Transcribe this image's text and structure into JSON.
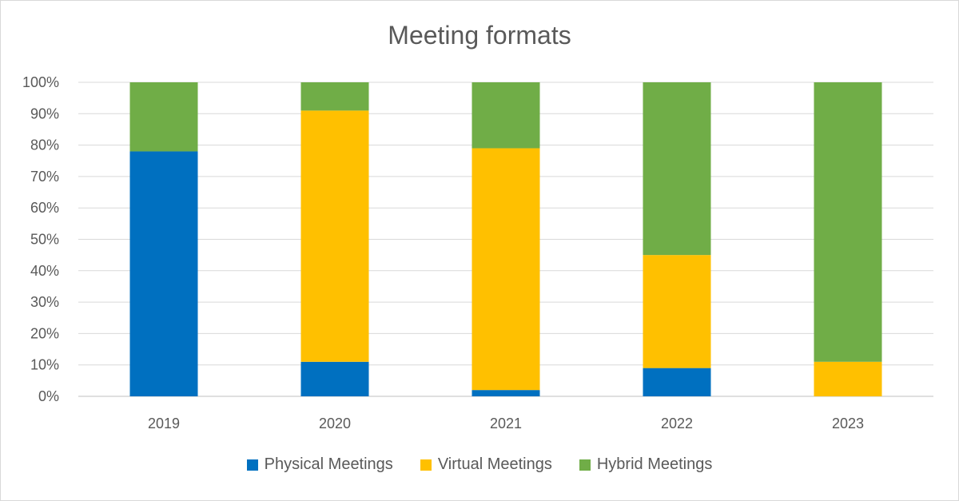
{
  "chart_data": {
    "type": "bar",
    "stacked": true,
    "title": "Meeting formats",
    "categories": [
      "2019",
      "2020",
      "2021",
      "2022",
      "2023"
    ],
    "series": [
      {
        "name": "Physical Meetings",
        "color": "#0070C0",
        "values": [
          78,
          11,
          2,
          9,
          0
        ]
      },
      {
        "name": "Virtual Meetings",
        "color": "#FFC000",
        "values": [
          0,
          80,
          77,
          36,
          11
        ]
      },
      {
        "name": "Hybrid Meetings",
        "color": "#70AD47",
        "values": [
          22,
          9,
          21,
          55,
          89
        ]
      }
    ],
    "ylim": [
      0,
      100
    ],
    "yticks": [
      "0%",
      "10%",
      "20%",
      "30%",
      "40%",
      "50%",
      "60%",
      "70%",
      "80%",
      "90%",
      "100%"
    ],
    "grid": true,
    "legend_position": "bottom"
  }
}
